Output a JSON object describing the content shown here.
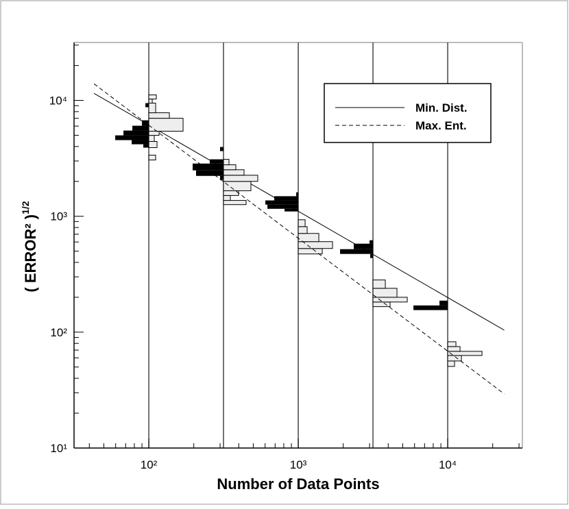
{
  "chart_data": {
    "type": "loglog-histogram",
    "xlabel": "Number of Data Points",
    "ylabel": "( ERROR² )",
    "ylabel_exponent": "1/2",
    "xlim": [
      31.6,
      31600
    ],
    "ylim": [
      10,
      31600
    ],
    "xscale": "log",
    "yscale": "log",
    "xticks": [
      {
        "value": 100,
        "label": "10²"
      },
      {
        "value": 1000,
        "label": "10³"
      },
      {
        "value": 10000,
        "label": "10⁴"
      }
    ],
    "yticks": [
      {
        "value": 10,
        "label": "10¹"
      },
      {
        "value": 100,
        "label": "10²"
      },
      {
        "value": 1000,
        "label": "10³"
      },
      {
        "value": 10000,
        "label": "10⁴"
      }
    ],
    "xminorticks": [
      40,
      50,
      60,
      70,
      80,
      90,
      200,
      300,
      400,
      500,
      600,
      700,
      800,
      900,
      2000,
      3000,
      4000,
      5000,
      6000,
      7000,
      8000,
      9000,
      20000,
      30000
    ],
    "yminorticks": [
      20,
      30,
      40,
      50,
      60,
      70,
      80,
      90,
      200,
      300,
      400,
      500,
      600,
      700,
      800,
      900,
      2000,
      3000,
      4000,
      5000,
      6000,
      7000,
      8000,
      9000,
      20000,
      30000
    ],
    "vlines": [
      100,
      316,
      1000,
      3162,
      10000
    ],
    "series": [
      {
        "name": "Min. Dist.",
        "dash": false,
        "color": "#000000",
        "hist_fill": "#000000",
        "hist_side": "left",
        "x": [
          43,
          23900
        ],
        "values": [
          11500,
          104
        ],
        "histograms": [
          {
            "at": 100,
            "bins": [
              3910,
              4180,
              4540,
              4990,
              5490,
              6040,
              6730,
              8730,
              9470
            ],
            "counts": [
              8,
              25,
              49,
              37,
              24,
              10,
              0,
              5
            ]
          },
          {
            "at": 316,
            "bins": [
              2060,
              2230,
              2490,
              2850,
              3100,
              3650,
              3960
            ],
            "counts": [
              5,
              40,
              45,
              20,
              0,
              5
            ]
          },
          {
            "at": 1000,
            "bins": [
              1100,
              1160,
              1260,
              1370,
              1490,
              1610
            ],
            "counts": [
              20,
              45,
              48,
              35,
              3
            ]
          },
          {
            "at": 3162,
            "bins": [
              436,
              473,
              520,
              580,
              621
            ],
            "counts": [
              4,
              48,
              28,
              5
            ]
          },
          {
            "at": 10000,
            "bins": [
              155,
              170,
              187
            ],
            "counts": [
              50,
              12
            ]
          }
        ]
      },
      {
        "name": "Max. Ent.",
        "dash": true,
        "color": "#000000",
        "hist_fill": "#eeeeee",
        "hist_side": "right",
        "x": [
          43,
          23900
        ],
        "values": [
          13900,
          29.3
        ],
        "histograms": [
          {
            "at": 100,
            "bins": [
              3060,
              3370,
              3910,
              4420,
              4990,
              5420,
              7010,
              7820,
              9470,
              10270,
              11150
            ],
            "counts": [
              10,
              0,
              12,
              8,
              15,
              50,
              30,
              10,
              5,
              11
            ]
          },
          {
            "at": 316,
            "bins": [
              1260,
              1370,
              1510,
              1660,
              2000,
              2260,
              2520,
              2780,
              3100
            ],
            "counts": [
              33,
              10,
              22,
              40,
              50,
              30,
              18,
              8
            ]
          },
          {
            "at": 1000,
            "bins": [
              473,
              527,
              604,
              711,
              814,
              933
            ],
            "counts": [
              35,
              50,
              30,
              13,
              10
            ]
          },
          {
            "at": 3162,
            "bins": [
              166,
              182,
              200,
              239,
              282
            ],
            "counts": [
              25,
              50,
              35,
              18
            ]
          },
          {
            "at": 10000,
            "bins": [
              50.6,
              56.4,
              62.9,
              68.3,
              75.1,
              82.6
            ],
            "counts": [
              10,
              20,
              50,
              18,
              12
            ]
          }
        ]
      }
    ]
  }
}
